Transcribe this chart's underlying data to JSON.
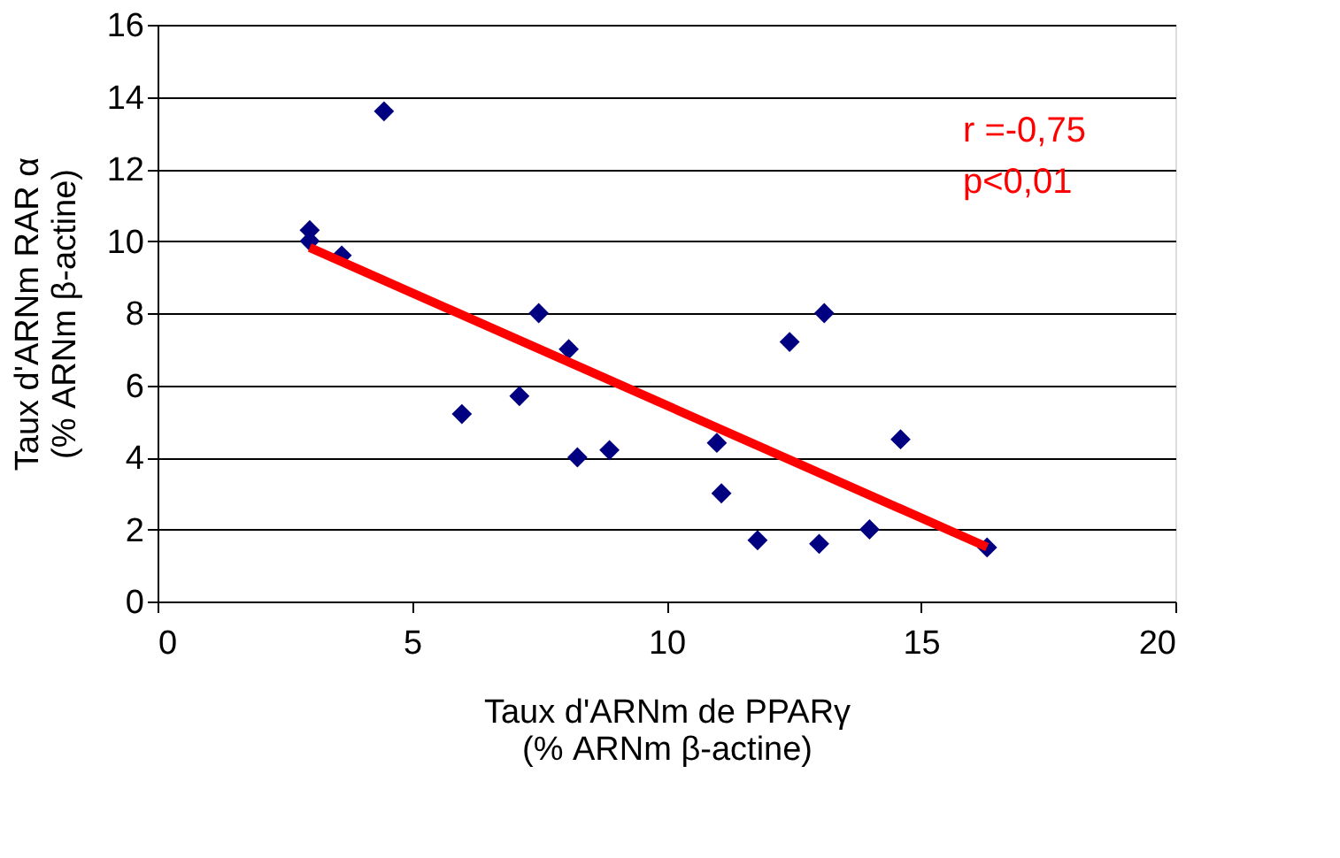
{
  "chart_data": {
    "type": "scatter",
    "xlabel": "Taux d'ARNm  de PPARγ\n(% ARNm β-actine)",
    "ylabel": "Taux d'ARNm RAR α\n(% ARNm β-actine)",
    "xlim": [
      0,
      20
    ],
    "xticks": [
      0,
      5,
      10,
      15,
      20
    ],
    "ylim": [
      0,
      16
    ],
    "yticks": [
      0,
      2,
      4,
      6,
      8,
      10,
      12,
      14,
      16
    ],
    "grid": "y",
    "marker": "diamond",
    "annotations": [
      "r =-0,75",
      "p<0,01"
    ],
    "series": [
      {
        "color": "#000080",
        "x": [
          2.99,
          2.99,
          3.62,
          4.45,
          5.98,
          7.11,
          7.49,
          8.08,
          8.25,
          8.88,
          10.99,
          11.08,
          11.79,
          12.42,
          13.0,
          13.1,
          13.99,
          14.6,
          16.3
        ],
        "values": [
          10.3,
          10.0,
          9.6,
          13.6,
          5.2,
          5.7,
          8.0,
          7.0,
          4.0,
          4.2,
          4.4,
          3.0,
          1.7,
          7.2,
          1.6,
          8.0,
          2.0,
          4.5,
          1.5
        ]
      },
      {
        "type": "line",
        "color": "#ff0000",
        "x": [
          2.99,
          16.3
        ],
        "values": [
          9.82,
          1.51
        ],
        "marker": "none",
        "line_style": "solid"
      }
    ]
  }
}
